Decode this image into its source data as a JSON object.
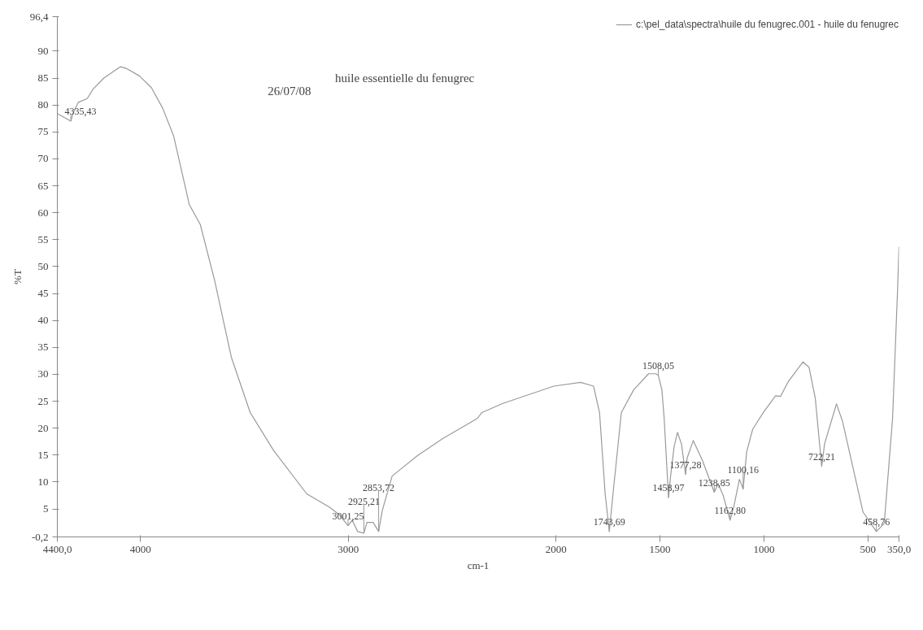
{
  "chart_data": {
    "type": "line",
    "title": "huile essentielle du fenugrec",
    "subtitle": "26/07/08",
    "xlabel": "cm-1",
    "ylabel": "%T",
    "xlim": [
      4400,
      350
    ],
    "ylim": [
      -0.2,
      96.4
    ],
    "xticks": [
      {
        "value": 4400,
        "label": "4400,0"
      },
      4000,
      3000,
      2000,
      1500,
      1000,
      500,
      {
        "value": 350,
        "label": "350,0"
      }
    ],
    "yticks": [
      {
        "value": -0.2,
        "label": "-0,2"
      },
      5,
      10,
      15,
      20,
      25,
      30,
      35,
      40,
      45,
      50,
      55,
      60,
      65,
      70,
      75,
      80,
      85,
      90,
      {
        "value": 96.4,
        "label": "96,4"
      }
    ],
    "grid": false,
    "legend": "top right",
    "marker": "none",
    "line_style": "solid",
    "series": [
      {
        "name": "c:\\pel_data\\spectra\\huile du fenugrec.001 - huile du fenugrec",
        "color": "#9a9a9a",
        "x": [
          4400,
          4335,
          4325,
          4299,
          4256,
          4229,
          4176,
          4096,
          4069,
          4005,
          3947,
          3893,
          3840,
          3765,
          3712,
          3643,
          3563,
          3472,
          3360,
          3200,
          3093,
          3045,
          3001,
          2981,
          2955,
          2925,
          2910,
          2880,
          2854,
          2837,
          2789,
          2667,
          2544,
          2379,
          2357,
          2256,
          2011,
          1882,
          1820,
          1791,
          1764,
          1744,
          1727,
          1686,
          1627,
          1555,
          1520,
          1508,
          1491,
          1480,
          1459,
          1450,
          1432,
          1416,
          1397,
          1377,
          1370,
          1340,
          1295,
          1239,
          1220,
          1196,
          1163,
          1145,
          1118,
          1100,
          1083,
          1054,
          1003,
          944,
          920,
          882,
          812,
          783,
          753,
          722,
          708,
          651,
          622,
          523,
          459,
          421,
          381,
          357,
          350
        ],
        "values": [
          78.4,
          77.0,
          78.4,
          80.5,
          81.2,
          82.9,
          85.0,
          87.1,
          86.8,
          85.4,
          83.2,
          79.4,
          74.2,
          61.5,
          57.8,
          47.4,
          33.2,
          22.9,
          15.9,
          7.8,
          5.4,
          4.0,
          1.9,
          2.9,
          0.8,
          0.5,
          2.5,
          2.5,
          0.8,
          4.6,
          11.1,
          14.9,
          18.1,
          21.8,
          22.9,
          24.6,
          27.8,
          28.5,
          27.8,
          22.9,
          7.8,
          0.8,
          7.5,
          22.9,
          27.1,
          30.1,
          30.1,
          29.8,
          27.1,
          21.8,
          7.1,
          10.8,
          16.6,
          19.2,
          17.1,
          11.4,
          14.4,
          17.7,
          13.9,
          8.1,
          9.7,
          7.5,
          2.9,
          5.4,
          10.5,
          8.7,
          15.6,
          19.8,
          22.9,
          26.0,
          25.9,
          28.7,
          32.3,
          31.3,
          25.6,
          12.9,
          17.1,
          24.5,
          21.3,
          4.4,
          0.8,
          2.3,
          21.8,
          45.6,
          53.7
        ]
      }
    ],
    "annotations": [
      {
        "text": "4335,43",
        "x": 4335,
        "y": 77.0
      },
      {
        "text": "3001,25",
        "x": 3001,
        "y": 1.9
      },
      {
        "text": "2925,21",
        "x": 2925,
        "y": 0.5
      },
      {
        "text": "2853,72",
        "x": 2854,
        "y": 0.8
      },
      {
        "text": "1743,69",
        "x": 1744,
        "y": 0.8
      },
      {
        "text": "1508,05",
        "x": 1508,
        "y": 29.8
      },
      {
        "text": "1458,97",
        "x": 1459,
        "y": 7.1
      },
      {
        "text": "1377,28",
        "x": 1377,
        "y": 11.4
      },
      {
        "text": "1238,85",
        "x": 1239,
        "y": 8.1
      },
      {
        "text": "1162,80",
        "x": 1163,
        "y": 2.9
      },
      {
        "text": "1100,16",
        "x": 1100,
        "y": 8.7
      },
      {
        "text": "722,21",
        "x": 722,
        "y": 12.9
      },
      {
        "text": "458,76",
        "x": 459,
        "y": 0.8
      }
    ]
  }
}
